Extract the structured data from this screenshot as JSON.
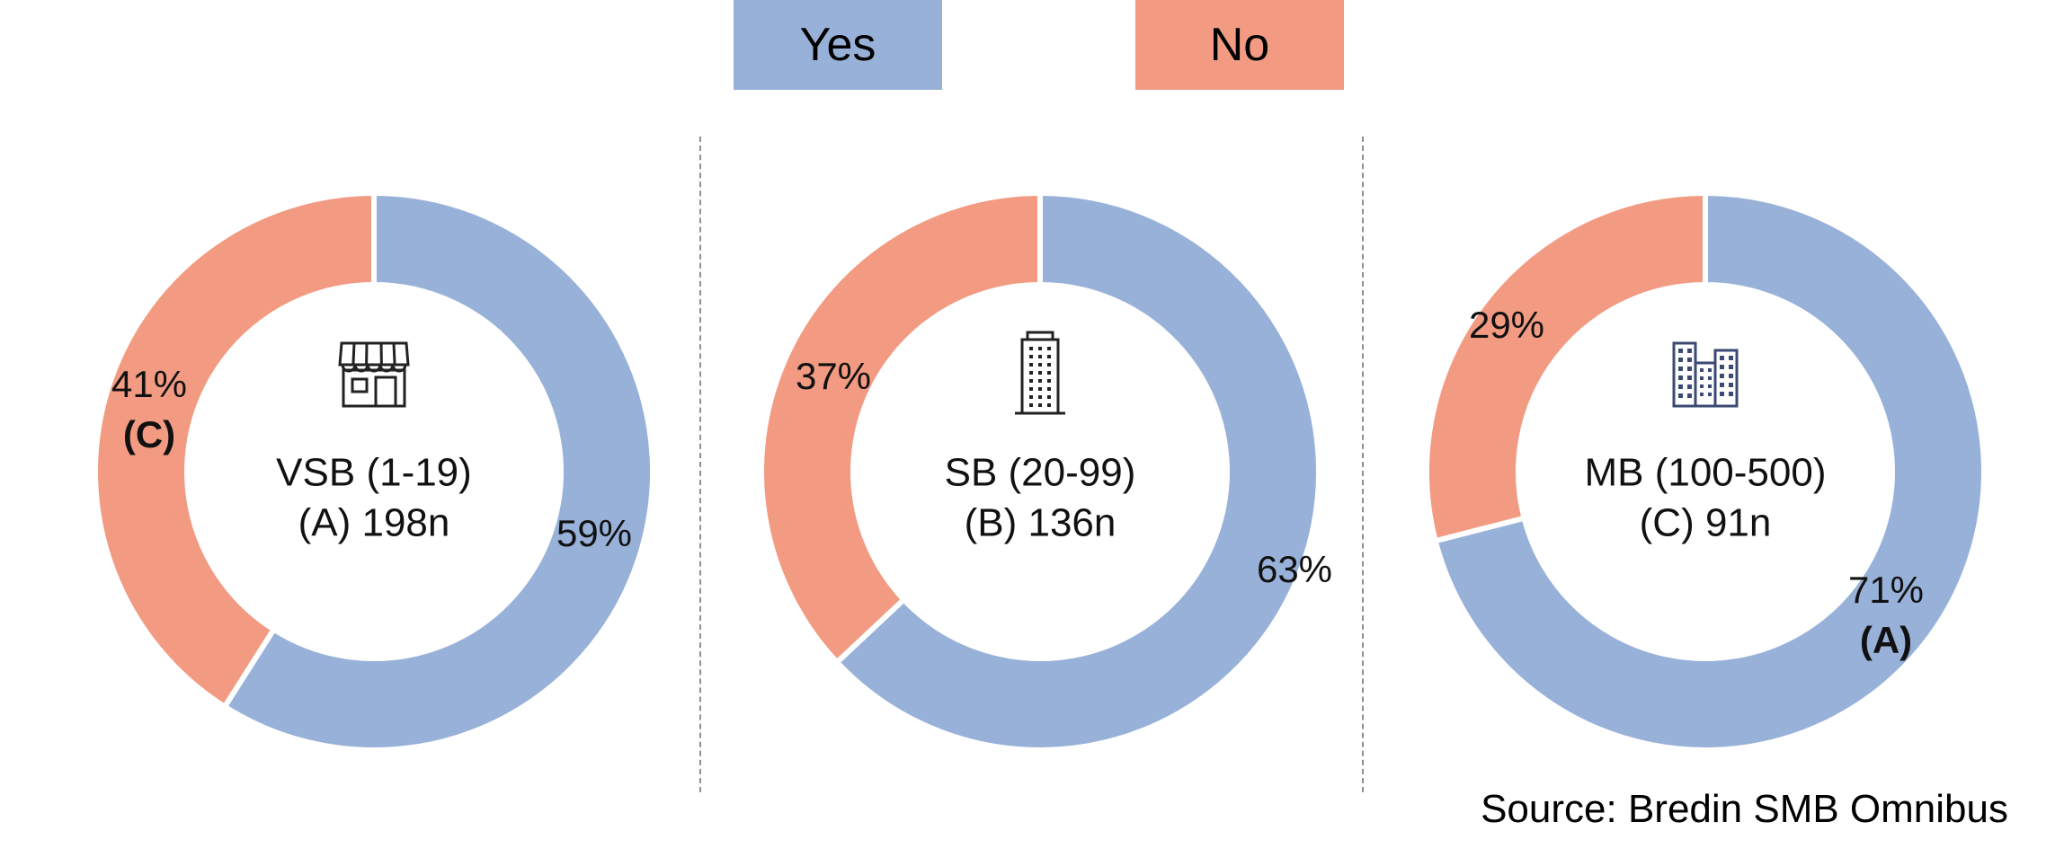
{
  "legend": {
    "yes_label": "Yes",
    "no_label": "No"
  },
  "colors": {
    "yes": "#98b1d9",
    "no": "#f29b82",
    "icon_dark": "#222222",
    "icon_navy": "#3b4a73"
  },
  "source": "Source: Bredin SMB Omnibus",
  "chart_data": [
    {
      "type": "pie",
      "variant": "donut",
      "label_line1": "VSB (1-19)",
      "label_line2": "(A) 198n",
      "icon": "storefront-icon",
      "categories": [
        "Yes",
        "No"
      ],
      "values": [
        59,
        41
      ],
      "value_labels": [
        "59%",
        "41%"
      ],
      "sig_labels": [
        "",
        "(C)"
      ]
    },
    {
      "type": "pie",
      "variant": "donut",
      "label_line1": "SB (20-99)",
      "label_line2": "(B) 136n",
      "icon": "office-tower-icon",
      "categories": [
        "Yes",
        "No"
      ],
      "values": [
        63,
        37
      ],
      "value_labels": [
        "63%",
        "37%"
      ],
      "sig_labels": [
        "",
        ""
      ]
    },
    {
      "type": "pie",
      "variant": "donut",
      "label_line1": "MB (100-500)",
      "label_line2": "(C) 91n",
      "icon": "city-buildings-icon",
      "categories": [
        "Yes",
        "No"
      ],
      "values": [
        71,
        29
      ],
      "value_labels": [
        "71%",
        "29%"
      ],
      "sig_labels": [
        "(A)",
        ""
      ]
    }
  ]
}
